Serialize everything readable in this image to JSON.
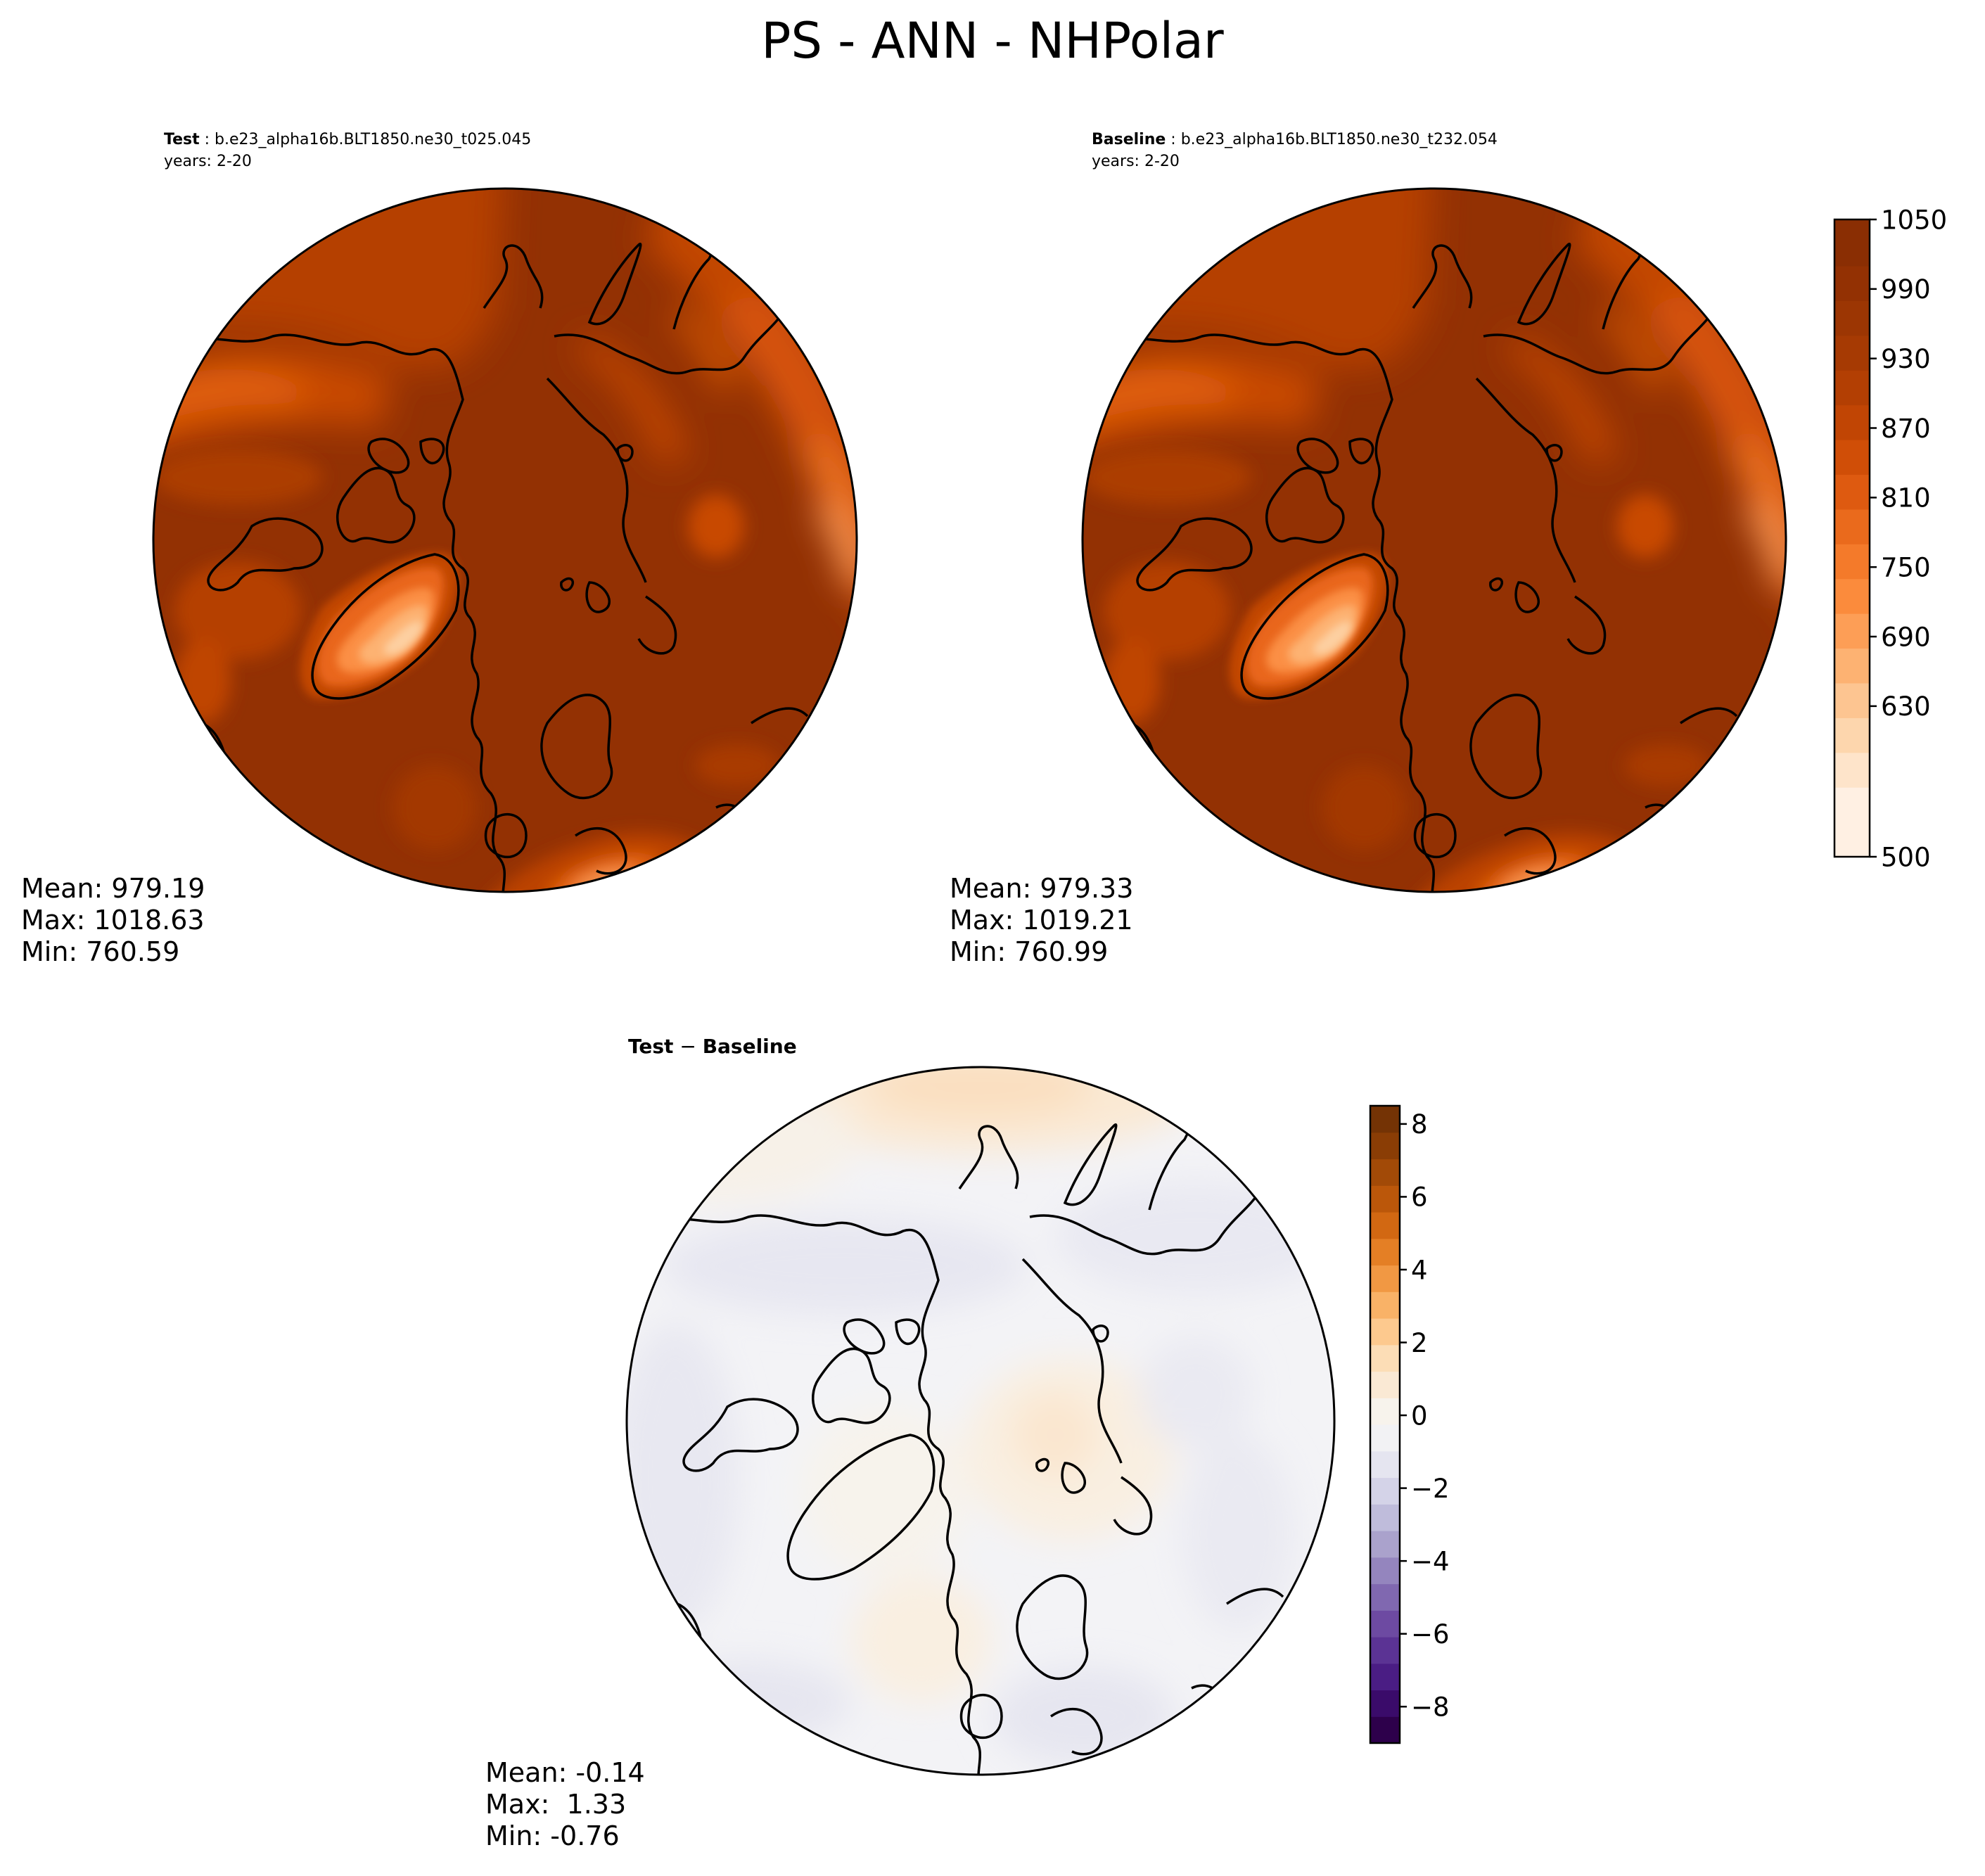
{
  "figure": {
    "title": "PS - ANN - NHPolar"
  },
  "chart_data": [
    {
      "type": "heatmap",
      "panel": "test",
      "title_bold": "Test",
      "title_rest": " : b.e23_alpha16b.BLT1850.ne30_t025.045",
      "years": "years: 2-20",
      "projection": "north-polar-stereographic",
      "stats": {
        "mean": "Mean: 979.19",
        "max": "Max: 1018.63",
        "min": "Min: 760.59"
      }
    },
    {
      "type": "heatmap",
      "panel": "baseline",
      "title_bold": "Baseline",
      "title_rest": " : b.e23_alpha16b.BLT1850.ne30_t232.054",
      "years": "years: 2-20",
      "projection": "north-polar-stereographic",
      "stats": {
        "mean": "Mean: 979.33",
        "max": "Max: 1019.21",
        "min": "Min: 760.99"
      },
      "colorbar": {
        "colormap": "Oranges",
        "range": [
          500,
          1050
        ],
        "levels": [
          500,
          560,
          590,
          620,
          650,
          680,
          710,
          740,
          770,
          800,
          830,
          860,
          890,
          920,
          950,
          980,
          1010,
          1050
        ],
        "ticks": [
          "500",
          "630",
          "690",
          "750",
          "810",
          "870",
          "930",
          "990",
          "1050"
        ],
        "tick_values": [
          500,
          630,
          690,
          750,
          810,
          870,
          930,
          990,
          1050
        ],
        "colors": [
          "#fff0e3",
          "#fee4ca",
          "#fdd6ad",
          "#fdc591",
          "#fdb272",
          "#fd9e56",
          "#fb8b3c",
          "#f47a2a",
          "#ea6a1c",
          "#de5a10",
          "#d04e07",
          "#c14504",
          "#b33f03",
          "#a63a03",
          "#9c3603",
          "#933103",
          "#8a2e03"
        ]
      }
    },
    {
      "type": "heatmap",
      "panel": "difference",
      "title_a": "Test",
      "title_op": " − ",
      "title_b": "Baseline",
      "projection": "north-polar-stereographic",
      "stats": {
        "mean": "Mean: -0.14",
        "max": "Max:  1.33",
        "min": "Min: -0.76"
      },
      "colorbar": {
        "colormap": "PuOr_r",
        "range": [
          -9,
          8.5
        ],
        "ticks": [
          "−8",
          "−6",
          "−4",
          "−2",
          "0",
          "2",
          "4",
          "6",
          "8"
        ],
        "tick_values": [
          -8,
          -6,
          -4,
          -2,
          0,
          2,
          4,
          6,
          8
        ],
        "colors": [
          "#2d004b",
          "#3a0b6a",
          "#4a1d84",
          "#5b3394",
          "#6d4aa2",
          "#8068b0",
          "#9485be",
          "#aaa2cc",
          "#bfbcdb",
          "#d4d3e8",
          "#e5e5f0",
          "#f2f2f4",
          "#f7f3ec",
          "#fae9d4",
          "#fcddb6",
          "#fdc98e",
          "#f9b267",
          "#f19843",
          "#e47f25",
          "#d26812",
          "#bb570a",
          "#a24a07",
          "#8a3d05",
          "#743305"
        ]
      }
    }
  ]
}
